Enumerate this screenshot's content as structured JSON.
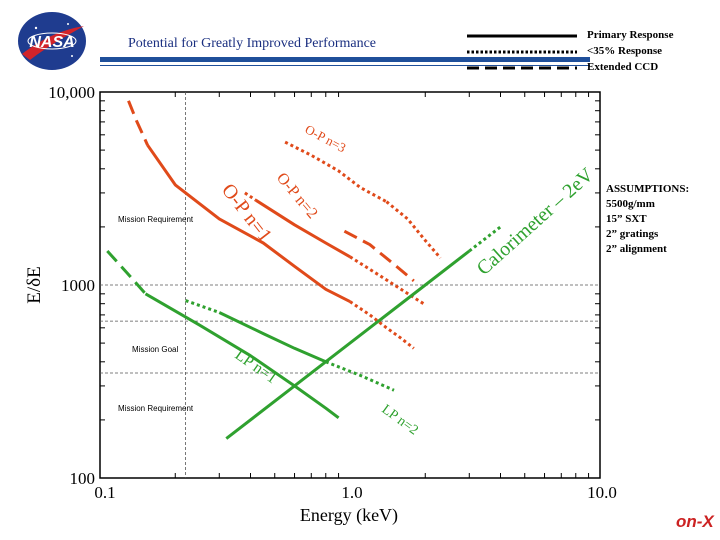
{
  "header": {
    "logo_text": "NASA",
    "slide_title": "Potential for Greatly Improved Performance",
    "corner_brand": "on-X"
  },
  "colors": {
    "orange": "#e04a1a",
    "green": "#2fa12f",
    "header_bar": "#1f4f9a",
    "nasa_blue": "#1f3c8f",
    "nasa_red": "#d1232a",
    "brand": "#cc2222"
  },
  "legend": [
    {
      "label": "Primary Response",
      "style": "solid"
    },
    {
      "label": "<35% Response",
      "style": "dotted"
    },
    {
      "label": "Extended CCD",
      "style": "dashed"
    }
  ],
  "assumptions": {
    "title": "ASSUMPTIONS:",
    "lines": [
      "5500g/mm",
      "15” SXT",
      "2” gratings",
      "2” alignment"
    ]
  },
  "chart_data": {
    "type": "line",
    "x_scale": "log",
    "y_scale": "log",
    "xlim": [
      0.1,
      10.0
    ],
    "ylim": [
      100,
      10000
    ],
    "xlabel": "Energy (keV)",
    "ylabel": "E/δE",
    "x_ticks": [
      "0.1",
      "1.0",
      "10.0"
    ],
    "y_ticks": [
      "100",
      "1000",
      "10,000"
    ],
    "reference_lines": {
      "x": [
        0.22
      ],
      "y": [
        1000,
        650,
        350
      ]
    },
    "reference_labels": {
      "mission_requirement_op": "Mission Requirement",
      "mission_goal": "Mission Goal",
      "mission_requirement_lp": "Mission Requirement"
    },
    "series": [
      {
        "name": "O-P n=1",
        "color": "orange",
        "segments": [
          {
            "style": "dashed",
            "x": [
              0.13,
              0.14,
              0.155
            ],
            "y": [
              9000,
              7100,
              5300
            ]
          },
          {
            "style": "solid",
            "x": [
              0.155,
              0.2,
              0.3,
              0.45,
              0.6,
              0.8,
              1.0
            ],
            "y": [
              5300,
              3300,
              2200,
              1650,
              1250,
              950,
              820
            ]
          },
          {
            "style": "dotted",
            "x": [
              1.0,
              1.2,
              1.4,
              1.6,
              1.8
            ],
            "y": [
              820,
              700,
              600,
              530,
              470
            ]
          }
        ]
      },
      {
        "name": "O-P n=2",
        "color": "orange",
        "segments": [
          {
            "style": "dotted",
            "x": [
              0.38,
              0.42
            ],
            "y": [
              3000,
              2750
            ]
          },
          {
            "style": "solid",
            "x": [
              0.42,
              0.6,
              0.8,
              1.0
            ],
            "y": [
              2750,
              2050,
              1650,
              1400
            ]
          },
          {
            "style": "dotted",
            "x": [
              1.0,
              1.3,
              1.6,
              2.0
            ],
            "y": [
              1400,
              1130,
              950,
              790
            ]
          }
        ]
      },
      {
        "name": "O-P n=3",
        "color": "orange",
        "segments": [
          {
            "style": "dotted",
            "x": [
              0.55,
              0.7,
              0.9,
              1.1,
              1.4
            ],
            "y": [
              5500,
              4700,
              3900,
              3200,
              2700
            ]
          },
          {
            "style": "dotted",
            "x": [
              1.4,
              1.7,
              2.0,
              2.3
            ],
            "y": [
              2700,
              2200,
              1700,
              1380
            ]
          }
        ]
      },
      {
        "name": "O-P n=2 (extended)",
        "color": "orange",
        "segments": [
          {
            "style": "dashed",
            "x": [
              0.95,
              1.2,
              1.5,
              1.8
            ],
            "y": [
              1900,
              1620,
              1280,
              1050
            ]
          }
        ]
      },
      {
        "name": "Calorimeter – 2eV",
        "color": "green",
        "segments": [
          {
            "style": "solid",
            "x": [
              0.32,
              0.6,
              1.0,
              2.0,
              3.0
            ],
            "y": [
              160,
              300,
              500,
              1000,
              1500
            ]
          },
          {
            "style": "dotted",
            "x": [
              3.0,
              4.0
            ],
            "y": [
              1500,
              2000
            ]
          }
        ]
      },
      {
        "name": "LP n=1",
        "color": "green",
        "segments": [
          {
            "style": "dashed",
            "x": [
              0.107,
              0.128,
              0.152
            ],
            "y": [
              1500,
              1160,
              900
            ]
          },
          {
            "style": "solid",
            "x": [
              0.152,
              0.25,
              0.4,
              0.6,
              0.8,
              0.9
            ],
            "y": [
              900,
              620,
              430,
              300,
              230,
              205
            ]
          }
        ]
      },
      {
        "name": "LP n=2",
        "color": "green",
        "segments": [
          {
            "style": "dotted",
            "x": [
              0.22,
              0.3
            ],
            "y": [
              830,
              720
            ]
          },
          {
            "style": "solid",
            "x": [
              0.3,
              0.45,
              0.6,
              0.8
            ],
            "y": [
              720,
              560,
              470,
              400
            ]
          },
          {
            "style": "dotted",
            "x": [
              0.8,
              1.1,
              1.5
            ],
            "y": [
              400,
              340,
              285
            ]
          }
        ]
      }
    ],
    "curve_labels": [
      "O-P n=1",
      "O-P n=2",
      "O-P n=3",
      "Calorimeter – 2eV",
      "LP n=1",
      "LP n=2"
    ]
  }
}
